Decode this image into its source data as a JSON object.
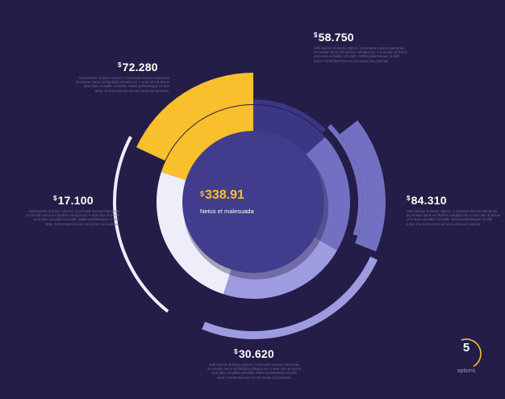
{
  "chart_data": {
    "type": "pie",
    "currency_symbol": "$",
    "segments": [
      {
        "value": "58.750",
        "description": "Vehi laoreet id donec ultrices. Commodo viverra maecenas accumsan lacus vel facilisis volutpat est. A erat nam at lectus urna duis convallis convallis. Mattis pellentesque id nibh tortor. Fermentum leo vel orci porta non pulvinar."
      },
      {
        "value": "84.310",
        "description": "Vehi laoreet id donec ultrices. Commodo viverra maecenas accumsan lacus vel facilisis volutpat est. A erat nam at lectus urna duis convallis convallis. Mattis pellentesque id nibh tortor. Fermentum leo vel orci porta non pulvinar."
      },
      {
        "value": "30.620",
        "description": "Vehi laoreet id donec ultrices. Commodo viverra maecenas accumsan lacus vel facilisis volutpat est. A erat nam at lectus urna duis convallis convallis. Mattis pellentesque id nibh tortor. Fermentum leo vel orci porta non pulvinar."
      },
      {
        "value": "17.100",
        "description": "Vehi laoreet id donec ultrices. Commodo viverra maecenas accumsan lacus vel facilisis volutpat est. A erat nam at lectus urna duis convallis convallis. Mattis pellentesque id nibh tortor. Fermentum leo vel orci porta non pulvinar."
      },
      {
        "value": "72.280",
        "description": "Vehi laoreet id donec ultrices. Commodo viverra maecenas accumsan lacus vel facilisis volutpat est. A erat nam at lectus urna duis convallis convallis. Mattis pellentesque id nibh tortor. Fermentum leo vel orci porta non pulvinar."
      }
    ],
    "center": {
      "value": "338.91",
      "label": "Netus et malesuada"
    },
    "options": {
      "count": "5",
      "label": "options"
    }
  },
  "colors": {
    "background": "#241d47",
    "dark_blue": "#3b3785",
    "purple": "#7370c4",
    "lavender": "#9e9be0",
    "white": "#eeeefa",
    "yellow": "#f9bf2c",
    "center_disc": "#413d8c"
  }
}
